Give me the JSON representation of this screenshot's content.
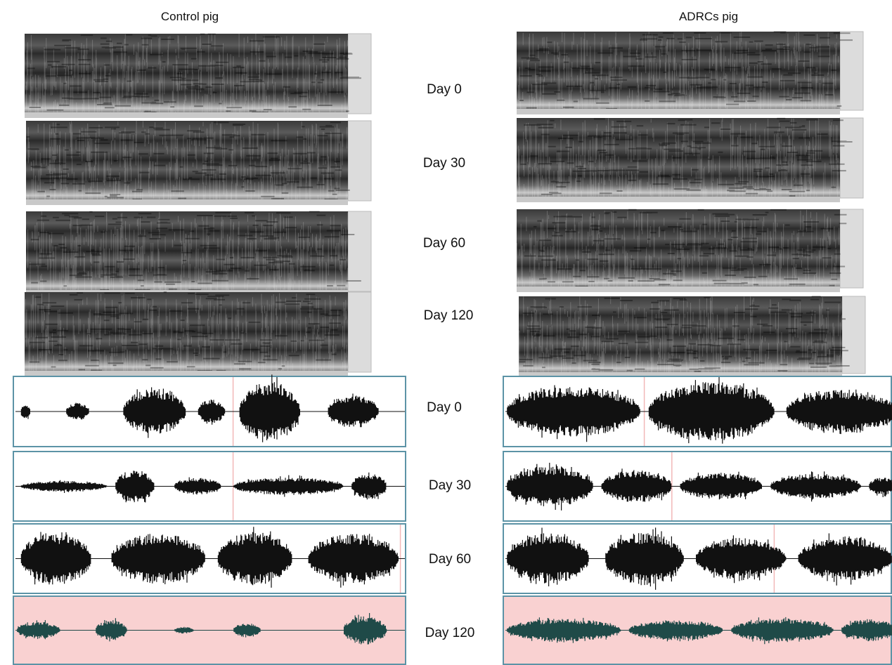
{
  "headers": {
    "left": "Control pig",
    "right": "ADRCs pig"
  },
  "spectrogram_days": [
    "Day 0",
    "Day 30",
    "Day 60",
    "Day 120"
  ],
  "waveform_days": [
    "Day 0",
    "Day 30",
    "Day 60",
    "Day 120"
  ]
}
